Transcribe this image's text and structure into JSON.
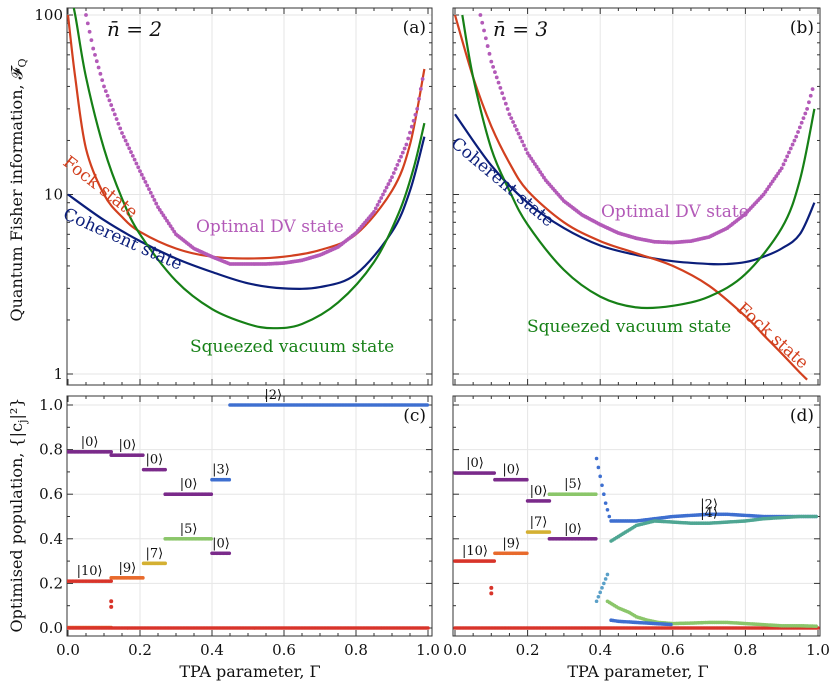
{
  "colors": {
    "coherent": "#0b1e7a",
    "fock": "#d2401f",
    "squeezed": "#168016",
    "optimal_dv": "#b35ab8",
    "purple": "#7a2a8a",
    "pop_red": "#d8342a",
    "pop_orange": "#e86a2c",
    "pop_yellow": "#d4b032",
    "pop_green": "#8bc66a",
    "pop_blue": "#3e6fd0",
    "pop_teal": "#4fa693",
    "pop_lblue": "#5aa0c8"
  },
  "axes": {
    "top_ylabel": "Quantum Fisher information, 𝓕",
    "top_ylabel_sub": "Q",
    "bottom_ylabel": "Optimised population, {|c",
    "bottom_ylabel_sub": "j",
    "bottom_ylabel_tail": "|²}",
    "xlabel": "TPA parameter, Γ",
    "qfi_ticks": [
      "1",
      "10",
      "100"
    ],
    "pop_ticks": [
      "0.0",
      "0.2",
      "0.4",
      "0.6",
      "0.8",
      "1.0"
    ],
    "x_ticks": [
      "0.0",
      "0.2",
      "0.4",
      "0.6",
      "0.8",
      "1.0"
    ]
  },
  "chart_data": [
    {
      "id": "a",
      "type": "line",
      "panel_label": "(a)",
      "title": "n̄ = 2",
      "yscale": "log",
      "xlim": [
        0,
        1
      ],
      "ylim": [
        0.9,
        100
      ],
      "series": [
        {
          "name": "Coherent state",
          "label": "Coherent state",
          "color_key": "coherent",
          "x": [
            0.0,
            0.1,
            0.2,
            0.3,
            0.4,
            0.5,
            0.6,
            0.7,
            0.8,
            0.9,
            0.95,
            0.99
          ],
          "y": [
            10.0,
            7.2,
            5.5,
            4.4,
            3.7,
            3.2,
            3.0,
            3.05,
            3.6,
            6.2,
            10.5,
            21.0
          ]
        },
        {
          "name": "Fock state",
          "label": "Fock state",
          "color_key": "fock",
          "x": [
            0.0,
            0.02,
            0.05,
            0.1,
            0.15,
            0.2,
            0.3,
            0.4,
            0.5,
            0.6,
            0.7,
            0.8,
            0.9,
            0.95,
            0.99
          ],
          "y": [
            100,
            45,
            18,
            10,
            7.5,
            6.2,
            5.0,
            4.5,
            4.4,
            4.5,
            4.9,
            6.0,
            10.5,
            19,
            50
          ]
        },
        {
          "name": "Squeezed vacuum state",
          "label": "Squeezed vacuum state",
          "color_key": "squeezed",
          "x": [
            0.0,
            0.02,
            0.05,
            0.1,
            0.15,
            0.2,
            0.3,
            0.4,
            0.5,
            0.57,
            0.65,
            0.75,
            0.85,
            0.92,
            0.96,
            0.99
          ],
          "y": [
            150,
            100,
            45,
            18,
            9.5,
            6.0,
            3.3,
            2.3,
            1.9,
            1.8,
            1.9,
            2.5,
            4.2,
            8.0,
            14,
            25
          ]
        },
        {
          "name": "Optimal DV state",
          "label": "Optimal DV state",
          "color_key": "optimal_dv",
          "markers": true,
          "x": [
            0.05,
            0.07,
            0.1,
            0.15,
            0.2,
            0.25,
            0.3,
            0.35,
            0.4,
            0.45,
            0.5,
            0.55,
            0.6,
            0.65,
            0.7,
            0.75,
            0.8,
            0.85,
            0.9,
            0.94,
            0.97,
            0.99
          ],
          "y": [
            100,
            65,
            40,
            22,
            13.5,
            8.5,
            6.0,
            5.0,
            4.5,
            4.1,
            4.1,
            4.1,
            4.15,
            4.3,
            4.6,
            5.1,
            6.1,
            8.0,
            12.5,
            19,
            30,
            50
          ]
        }
      ]
    },
    {
      "id": "b",
      "type": "line",
      "panel_label": "(b)",
      "title": "n̄ = 3",
      "yscale": "log",
      "xlim": [
        0,
        1
      ],
      "ylim": [
        0.9,
        100
      ],
      "series": [
        {
          "name": "Coherent state",
          "label": "Coherent state",
          "color_key": "coherent",
          "x": [
            0.0,
            0.1,
            0.2,
            0.3,
            0.4,
            0.5,
            0.6,
            0.7,
            0.75,
            0.8,
            0.85,
            0.9,
            0.95,
            0.99
          ],
          "y": [
            28,
            14.5,
            9.0,
            6.5,
            5.2,
            4.6,
            4.25,
            4.1,
            4.1,
            4.2,
            4.5,
            5.0,
            6.0,
            9.0
          ]
        },
        {
          "name": "Fock state",
          "label": "Fock state",
          "color_key": "fock",
          "x": [
            0.0,
            0.05,
            0.1,
            0.15,
            0.2,
            0.3,
            0.4,
            0.5,
            0.6,
            0.7,
            0.8,
            0.85,
            0.9,
            0.95,
            0.97
          ],
          "y": [
            100,
            45,
            24,
            15,
            10.5,
            7.0,
            5.5,
            4.7,
            4.0,
            3.1,
            2.1,
            1.65,
            1.3,
            1.02,
            0.93
          ]
        },
        {
          "name": "Squeezed vacuum state",
          "label": "Squeezed vacuum state",
          "color_key": "squeezed",
          "x": [
            0.02,
            0.05,
            0.1,
            0.15,
            0.2,
            0.3,
            0.4,
            0.5,
            0.6,
            0.7,
            0.8,
            0.9,
            0.95,
            0.99
          ],
          "y": [
            100,
            45,
            18,
            10.5,
            6.8,
            3.8,
            2.7,
            2.35,
            2.4,
            2.7,
            3.6,
            6.5,
            12,
            30
          ]
        },
        {
          "name": "Optimal DV state",
          "label": "Optimal DV state",
          "color_key": "optimal_dv",
          "markers": true,
          "x": [
            0.07,
            0.1,
            0.15,
            0.2,
            0.25,
            0.3,
            0.35,
            0.4,
            0.45,
            0.5,
            0.55,
            0.6,
            0.65,
            0.7,
            0.75,
            0.8,
            0.85,
            0.9,
            0.94,
            0.97,
            0.99
          ],
          "y": [
            100,
            55,
            28,
            17,
            12,
            9.2,
            7.7,
            6.8,
            6.1,
            5.7,
            5.45,
            5.4,
            5.5,
            5.8,
            6.5,
            7.8,
            10.0,
            14,
            21,
            30,
            42
          ]
        }
      ]
    },
    {
      "id": "c",
      "type": "scatter",
      "panel_label": "(c)",
      "xlim": [
        0,
        1
      ],
      "ylim": [
        0,
        1
      ],
      "segments": [
        {
          "x0": 0.0,
          "x1": 0.12,
          "y": 0.79,
          "color_key": "purple"
        },
        {
          "x0": 0.12,
          "x1": 0.21,
          "y": 0.775,
          "color_key": "purple"
        },
        {
          "x0": 0.21,
          "x1": 0.27,
          "y": 0.71,
          "color_key": "purple"
        },
        {
          "x0": 0.27,
          "x1": 0.4,
          "y": 0.6,
          "color_key": "purple"
        },
        {
          "x0": 0.4,
          "x1": 0.45,
          "y": 0.335,
          "color_key": "purple"
        },
        {
          "x0": 0.4,
          "x1": 0.45,
          "y": 0.665,
          "color_key": "pop_blue"
        },
        {
          "x0": 0.45,
          "x1": 1.0,
          "y": 1.0,
          "color_key": "pop_blue"
        },
        {
          "x0": 0.0,
          "x1": 0.12,
          "y": 0.21,
          "color_key": "pop_red"
        },
        {
          "x0": 0.12,
          "x1": 0.21,
          "y": 0.225,
          "color_key": "pop_orange"
        },
        {
          "x0": 0.21,
          "x1": 0.27,
          "y": 0.29,
          "color_key": "pop_yellow"
        },
        {
          "x0": 0.27,
          "x1": 0.4,
          "y": 0.4,
          "color_key": "pop_green"
        },
        {
          "x0": 0.0,
          "x1": 0.12,
          "y": 0.002,
          "color_key": "pop_orange"
        },
        {
          "x0": 0.0,
          "x1": 1.0,
          "y": 0.0,
          "color_key": "pop_red"
        }
      ],
      "points": [
        {
          "x": 0.12,
          "y": 0.12,
          "color_key": "pop_red"
        },
        {
          "x": 0.12,
          "y": 0.095,
          "color_key": "pop_red"
        }
      ],
      "annotations": [
        {
          "text": "|0⟩",
          "x": 0.06,
          "y": 0.79
        },
        {
          "text": "|0⟩",
          "x": 0.165,
          "y": 0.775
        },
        {
          "text": "|0⟩",
          "x": 0.24,
          "y": 0.71
        },
        {
          "text": "|0⟩",
          "x": 0.335,
          "y": 0.6
        },
        {
          "text": "|3⟩",
          "x": 0.425,
          "y": 0.665
        },
        {
          "text": "|5⟩",
          "x": 0.335,
          "y": 0.4
        },
        {
          "text": "|0⟩",
          "x": 0.425,
          "y": 0.335
        },
        {
          "text": "|7⟩",
          "x": 0.24,
          "y": 0.29
        },
        {
          "text": "|9⟩",
          "x": 0.165,
          "y": 0.225
        },
        {
          "text": "|10⟩",
          "x": 0.06,
          "y": 0.21
        },
        {
          "text": "|2⟩",
          "x": 0.57,
          "y": 1.0
        }
      ]
    },
    {
      "id": "d",
      "type": "scatter",
      "panel_label": "(d)",
      "xlim": [
        0,
        1
      ],
      "ylim": [
        0,
        1
      ],
      "segments": [
        {
          "x0": 0.0,
          "x1": 0.11,
          "y": 0.695,
          "color_key": "purple"
        },
        {
          "x0": 0.11,
          "x1": 0.2,
          "y": 0.665,
          "color_key": "purple"
        },
        {
          "x0": 0.2,
          "x1": 0.26,
          "y": 0.57,
          "color_key": "purple"
        },
        {
          "x0": 0.26,
          "x1": 0.39,
          "y": 0.4,
          "color_key": "purple"
        },
        {
          "x0": 0.26,
          "x1": 0.39,
          "y": 0.6,
          "color_key": "pop_green"
        },
        {
          "x0": 0.0,
          "x1": 0.11,
          "y": 0.3,
          "color_key": "pop_red"
        },
        {
          "x0": 0.11,
          "x1": 0.2,
          "y": 0.335,
          "color_key": "pop_orange"
        },
        {
          "x0": 0.2,
          "x1": 0.26,
          "y": 0.43,
          "color_key": "pop_yellow"
        },
        {
          "x0": 0.0,
          "x1": 1.0,
          "y": 0.0,
          "color_key": "pop_red"
        }
      ],
      "curves": [
        {
          "color_key": "pop_blue",
          "x": [
            0.43,
            0.5,
            0.55,
            0.6,
            0.65,
            0.7,
            0.75,
            0.8,
            0.85,
            0.9,
            0.95,
            1.0
          ],
          "y": [
            0.48,
            0.48,
            0.49,
            0.5,
            0.505,
            0.51,
            0.51,
            0.505,
            0.5,
            0.5,
            0.5,
            0.5
          ]
        },
        {
          "color_key": "pop_teal",
          "x": [
            0.43,
            0.45,
            0.48,
            0.5,
            0.55,
            0.6,
            0.65,
            0.7,
            0.75,
            0.8,
            0.85,
            0.9,
            0.95,
            1.0
          ],
          "y": [
            0.39,
            0.41,
            0.44,
            0.46,
            0.48,
            0.475,
            0.47,
            0.47,
            0.475,
            0.48,
            0.49,
            0.495,
            0.5,
            0.5
          ]
        },
        {
          "color_key": "pop_blue",
          "x": [
            0.39,
            0.395,
            0.4,
            0.405,
            0.41,
            0.415,
            0.42,
            0.425,
            0.43
          ],
          "y": [
            0.76,
            0.72,
            0.68,
            0.64,
            0.6,
            0.56,
            0.53,
            0.5,
            0.48
          ]
        },
        {
          "color_key": "pop_lblue",
          "x": [
            0.39,
            0.395,
            0.4,
            0.405,
            0.41,
            0.415,
            0.42,
            0.425
          ],
          "y": [
            0.12,
            0.14,
            0.16,
            0.18,
            0.2,
            0.22,
            0.24,
            0.22
          ]
        },
        {
          "color_key": "pop_green",
          "x": [
            0.42,
            0.45,
            0.48,
            0.5,
            0.53,
            0.56,
            0.6,
            0.65,
            0.7,
            0.75,
            0.8,
            0.85,
            0.9,
            0.95,
            1.0
          ],
          "y": [
            0.12,
            0.09,
            0.07,
            0.05,
            0.035,
            0.025,
            0.02,
            0.022,
            0.025,
            0.025,
            0.02,
            0.015,
            0.01,
            0.01,
            0.008
          ]
        },
        {
          "color_key": "pop_blue",
          "x": [
            0.43,
            0.45,
            0.5,
            0.55,
            0.6
          ],
          "y": [
            0.035,
            0.03,
            0.025,
            0.02,
            0.015
          ]
        }
      ],
      "points": [
        {
          "x": 0.1,
          "y": 0.18,
          "color_key": "pop_red"
        },
        {
          "x": 0.1,
          "y": 0.155,
          "color_key": "pop_red"
        }
      ],
      "annotations": [
        {
          "text": "|0⟩",
          "x": 0.055,
          "y": 0.695
        },
        {
          "text": "|0⟩",
          "x": 0.155,
          "y": 0.665
        },
        {
          "text": "|0⟩",
          "x": 0.23,
          "y": 0.57
        },
        {
          "text": "|5⟩",
          "x": 0.325,
          "y": 0.6
        },
        {
          "text": "|0⟩",
          "x": 0.325,
          "y": 0.4
        },
        {
          "text": "|7⟩",
          "x": 0.23,
          "y": 0.43
        },
        {
          "text": "|9⟩",
          "x": 0.155,
          "y": 0.335
        },
        {
          "text": "|10⟩",
          "x": 0.055,
          "y": 0.3
        },
        {
          "text": "|2⟩",
          "x": 0.7,
          "y": 0.51
        },
        {
          "text": "|4⟩",
          "x": 0.7,
          "y": 0.47
        }
      ]
    }
  ]
}
